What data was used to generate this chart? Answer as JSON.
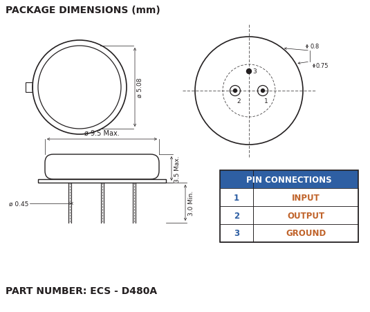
{
  "title": "PACKAGE DIMENSIONS (mm)",
  "part_number": "PART NUMBER: ECS - D480A",
  "bg_color": "#ffffff",
  "line_color": "#231f20",
  "table_header_bg": "#2e5fa3",
  "table_header_color": "#ffffff",
  "table_text_color": "#231f20",
  "table_header": "PIN CONNECTIONS",
  "pins": [
    {
      "num": "1",
      "func": "INPUT"
    },
    {
      "num": "2",
      "func": "OUTPUT"
    },
    {
      "num": "3",
      "func": "GROUND"
    }
  ],
  "dim_508": "ø 5.08",
  "dim_95": "ø 9.5 Max.",
  "dim_045": "ø 0.45",
  "dim_35": "3.5 Max.",
  "dim_30": "3.0 Min.",
  "dim_08": "0.8",
  "dim_075": "0.75"
}
